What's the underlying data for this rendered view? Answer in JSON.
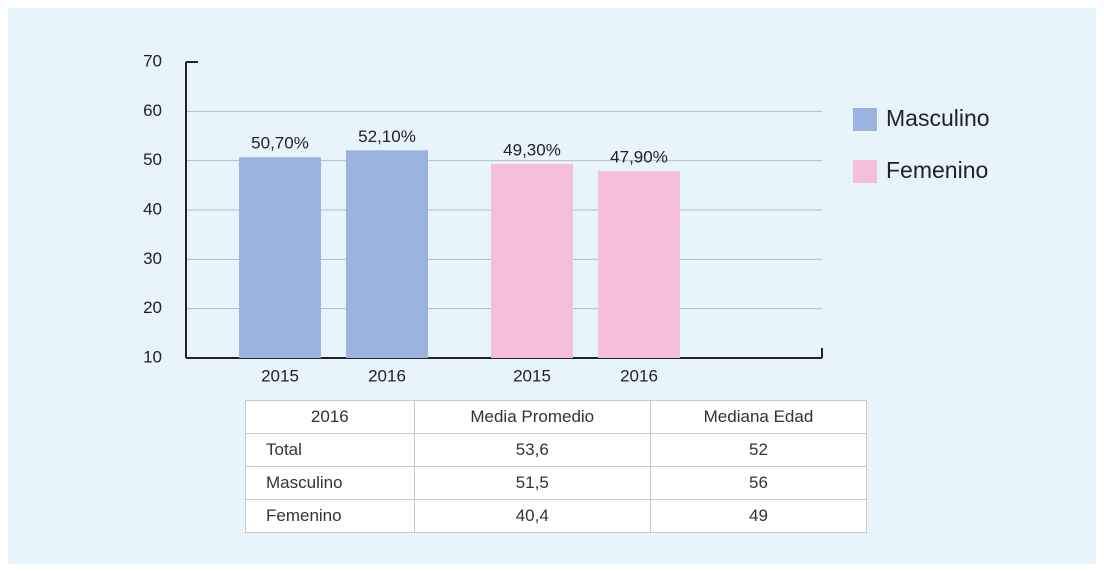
{
  "chart_data": {
    "type": "bar",
    "categories": [
      "2015",
      "2016",
      "2015",
      "2016"
    ],
    "series": [
      {
        "name": "Masculino",
        "color": "#9db3df",
        "values": [
          50.7,
          52.1,
          null,
          null
        ],
        "value_labels": [
          "50,70%",
          "52,10%",
          null,
          null
        ]
      },
      {
        "name": "Femenino",
        "color": "#f5bedb",
        "values": [
          null,
          null,
          49.3,
          47.9
        ],
        "value_labels": [
          null,
          null,
          "49,30%",
          "47,90%"
        ]
      }
    ],
    "ylim": [
      10,
      70
    ],
    "yticks": [
      10,
      20,
      30,
      40,
      50,
      60,
      70
    ],
    "grid": true,
    "legend": "right"
  },
  "table": {
    "header": [
      "2016",
      "Media Promedio",
      "Mediana Edad"
    ],
    "rows": [
      [
        "Total",
        "53,6",
        "52"
      ],
      [
        "Masculino",
        "51,5",
        "56"
      ],
      [
        "Femenino",
        "40,4",
        "49"
      ]
    ]
  }
}
